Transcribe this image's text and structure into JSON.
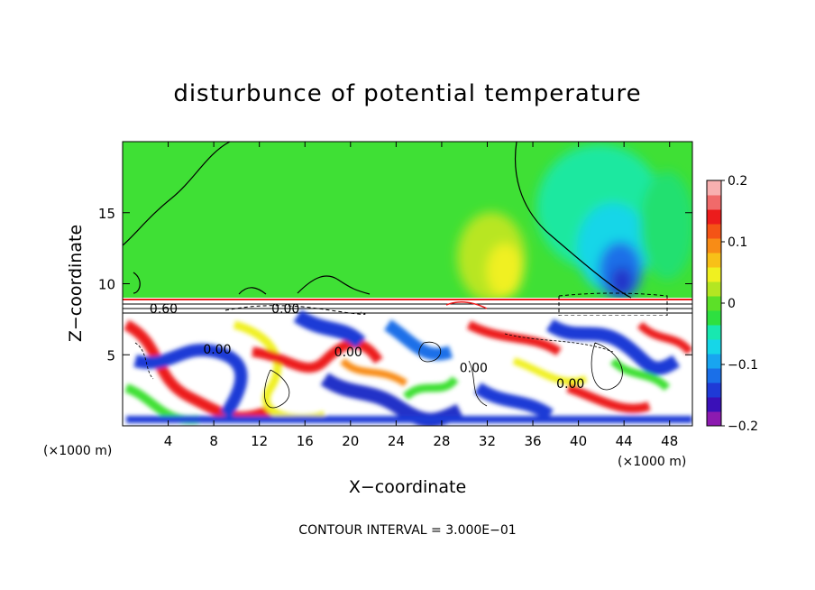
{
  "chart_data": {
    "type": "heatmap",
    "title": "disturbunce of potential temperature",
    "xlabel": "X−coordinate",
    "ylabel": "Z−coordinate",
    "x_unit_left": "(×1000 m)",
    "x_unit_right": "(×1000 m)",
    "xlim": [
      0,
      50
    ],
    "ylim": [
      0,
      20
    ],
    "x_ticks": [
      4,
      8,
      12,
      16,
      20,
      24,
      28,
      32,
      36,
      40,
      44,
      48
    ],
    "y_ticks": [
      5,
      10,
      15
    ],
    "footer": "CONTOUR INTERVAL = 3.000E−01",
    "colorbar": {
      "range": [
        -0.2,
        0.2
      ],
      "ticks": [
        {
          "value": 0.2,
          "label": "0.2"
        },
        {
          "value": 0.1,
          "label": "0.1"
        },
        {
          "value": 0,
          "label": "0"
        },
        {
          "value": -0.1,
          "label": "−0.1"
        },
        {
          "value": -0.2,
          "label": "−0.2"
        }
      ],
      "colors": [
        "#8c1ab0",
        "#3a10b8",
        "#1f3ad6",
        "#1a6fe8",
        "#18a5f0",
        "#16d6e8",
        "#18e8b0",
        "#2ee040",
        "#5ce028",
        "#b4e622",
        "#f0f020",
        "#f8c018",
        "#f88c16",
        "#f45416",
        "#ec1c1c",
        "#f06a6a",
        "#f8b0b0"
      ]
    },
    "contour_labels": [
      {
        "x": 3.6,
        "z": 8.25,
        "text": "0.60"
      },
      {
        "x": 14.3,
        "z": 8.25,
        "text": "0.00"
      },
      {
        "x": 8.3,
        "z": 5.4,
        "text": "0.00"
      },
      {
        "x": 19.8,
        "z": 5.2,
        "text": "0.00"
      },
      {
        "x": 30.8,
        "z": 4.1,
        "text": "0.00"
      },
      {
        "x": 39.3,
        "z": 3.0,
        "text": "0.00"
      }
    ]
  }
}
